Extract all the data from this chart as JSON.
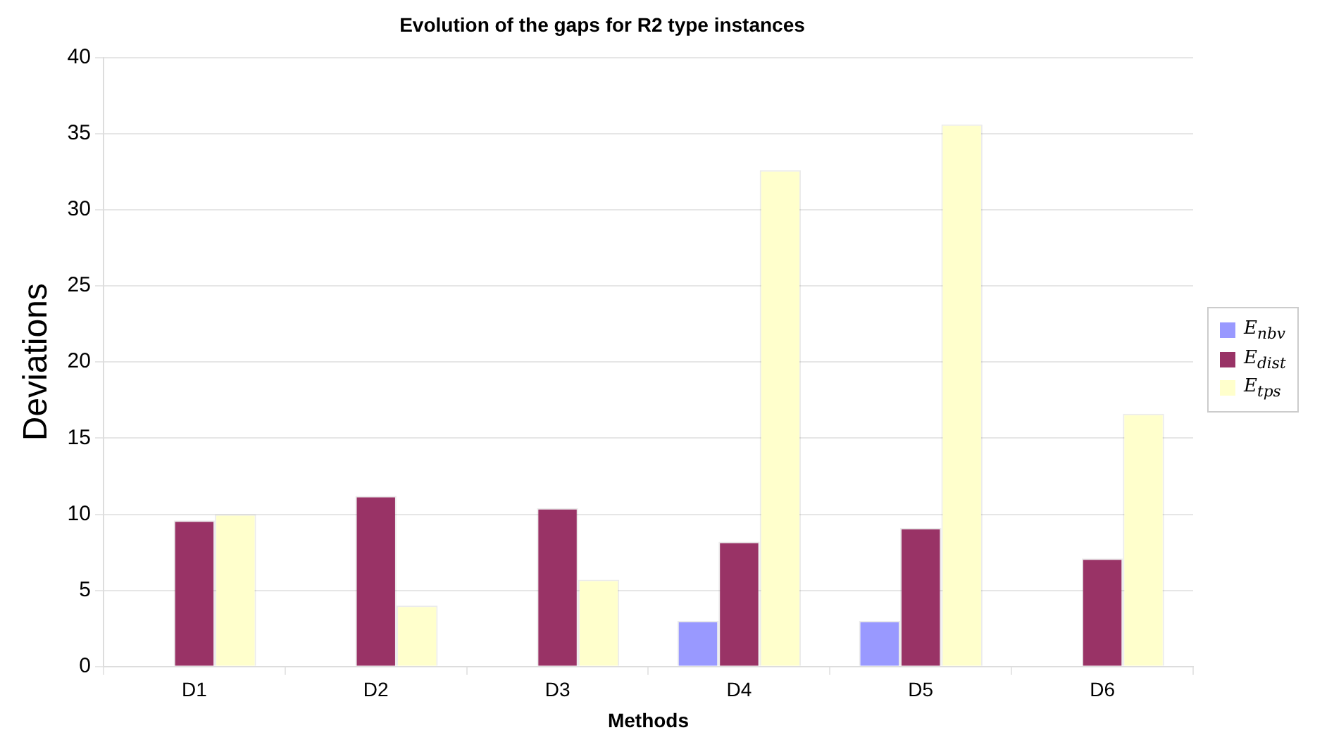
{
  "chart_data": {
    "type": "bar",
    "title": "Evolution of the gaps for R2 type instances",
    "xlabel": "Methods",
    "ylabel": "Deviations",
    "categories": [
      "D1",
      "D2",
      "D3",
      "D4",
      "D5",
      "D6"
    ],
    "series": [
      {
        "name": "E$_{nbv}$",
        "color": "#9999ff",
        "values": [
          0,
          0,
          0,
          3.0,
          3.0,
          0
        ]
      },
      {
        "name": "E$_{dist}$",
        "color": "#993366",
        "values": [
          9.6,
          11.2,
          10.4,
          8.2,
          9.1,
          7.1
        ]
      },
      {
        "name": "E$_{tps}$",
        "color": "#ffffcc",
        "values": [
          10.0,
          4.0,
          5.7,
          32.6,
          35.6,
          16.6
        ]
      }
    ],
    "ylim": [
      0,
      40
    ],
    "yticks": [
      0,
      5,
      10,
      15,
      20,
      25,
      30,
      35,
      40
    ],
    "grid": "y",
    "legend": "right"
  }
}
